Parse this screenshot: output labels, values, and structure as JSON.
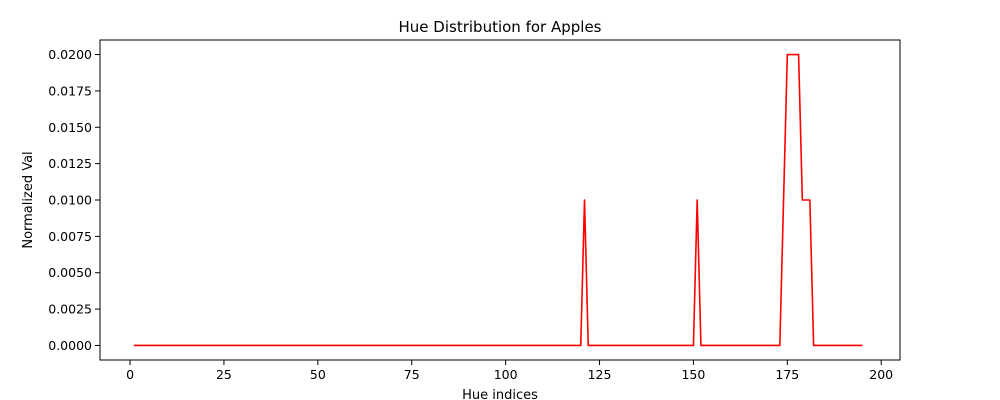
{
  "chart_data": {
    "type": "line",
    "title": "Hue Distribution for Apples",
    "xlabel": "Hue indices",
    "ylabel": "Normalized Val",
    "xlim": [
      -8,
      205
    ],
    "ylim": [
      -0.001,
      0.021
    ],
    "xticks": [
      0,
      25,
      50,
      75,
      100,
      125,
      150,
      175,
      200
    ],
    "yticks": [
      0.0,
      0.0025,
      0.005,
      0.0075,
      0.01,
      0.0125,
      0.015,
      0.0175,
      0.02
    ],
    "xtick_labels": [
      "0",
      "25",
      "50",
      "75",
      "100",
      "125",
      "150",
      "175",
      "200"
    ],
    "ytick_labels": [
      "0.0000",
      "0.0025",
      "0.0050",
      "0.0075",
      "0.0100",
      "0.0125",
      "0.0150",
      "0.0175",
      "0.0200"
    ],
    "grid": false,
    "series": [
      {
        "color": "#ff0000",
        "x": [
          1,
          120,
          121,
          122,
          150,
          151,
          152,
          173,
          175,
          178,
          179,
          181,
          182,
          195
        ],
        "y": [
          0.0,
          0.0,
          0.01,
          0.0,
          0.0,
          0.01,
          0.0,
          0.0,
          0.02,
          0.02,
          0.01,
          0.01,
          0.0,
          0.0
        ]
      }
    ]
  }
}
